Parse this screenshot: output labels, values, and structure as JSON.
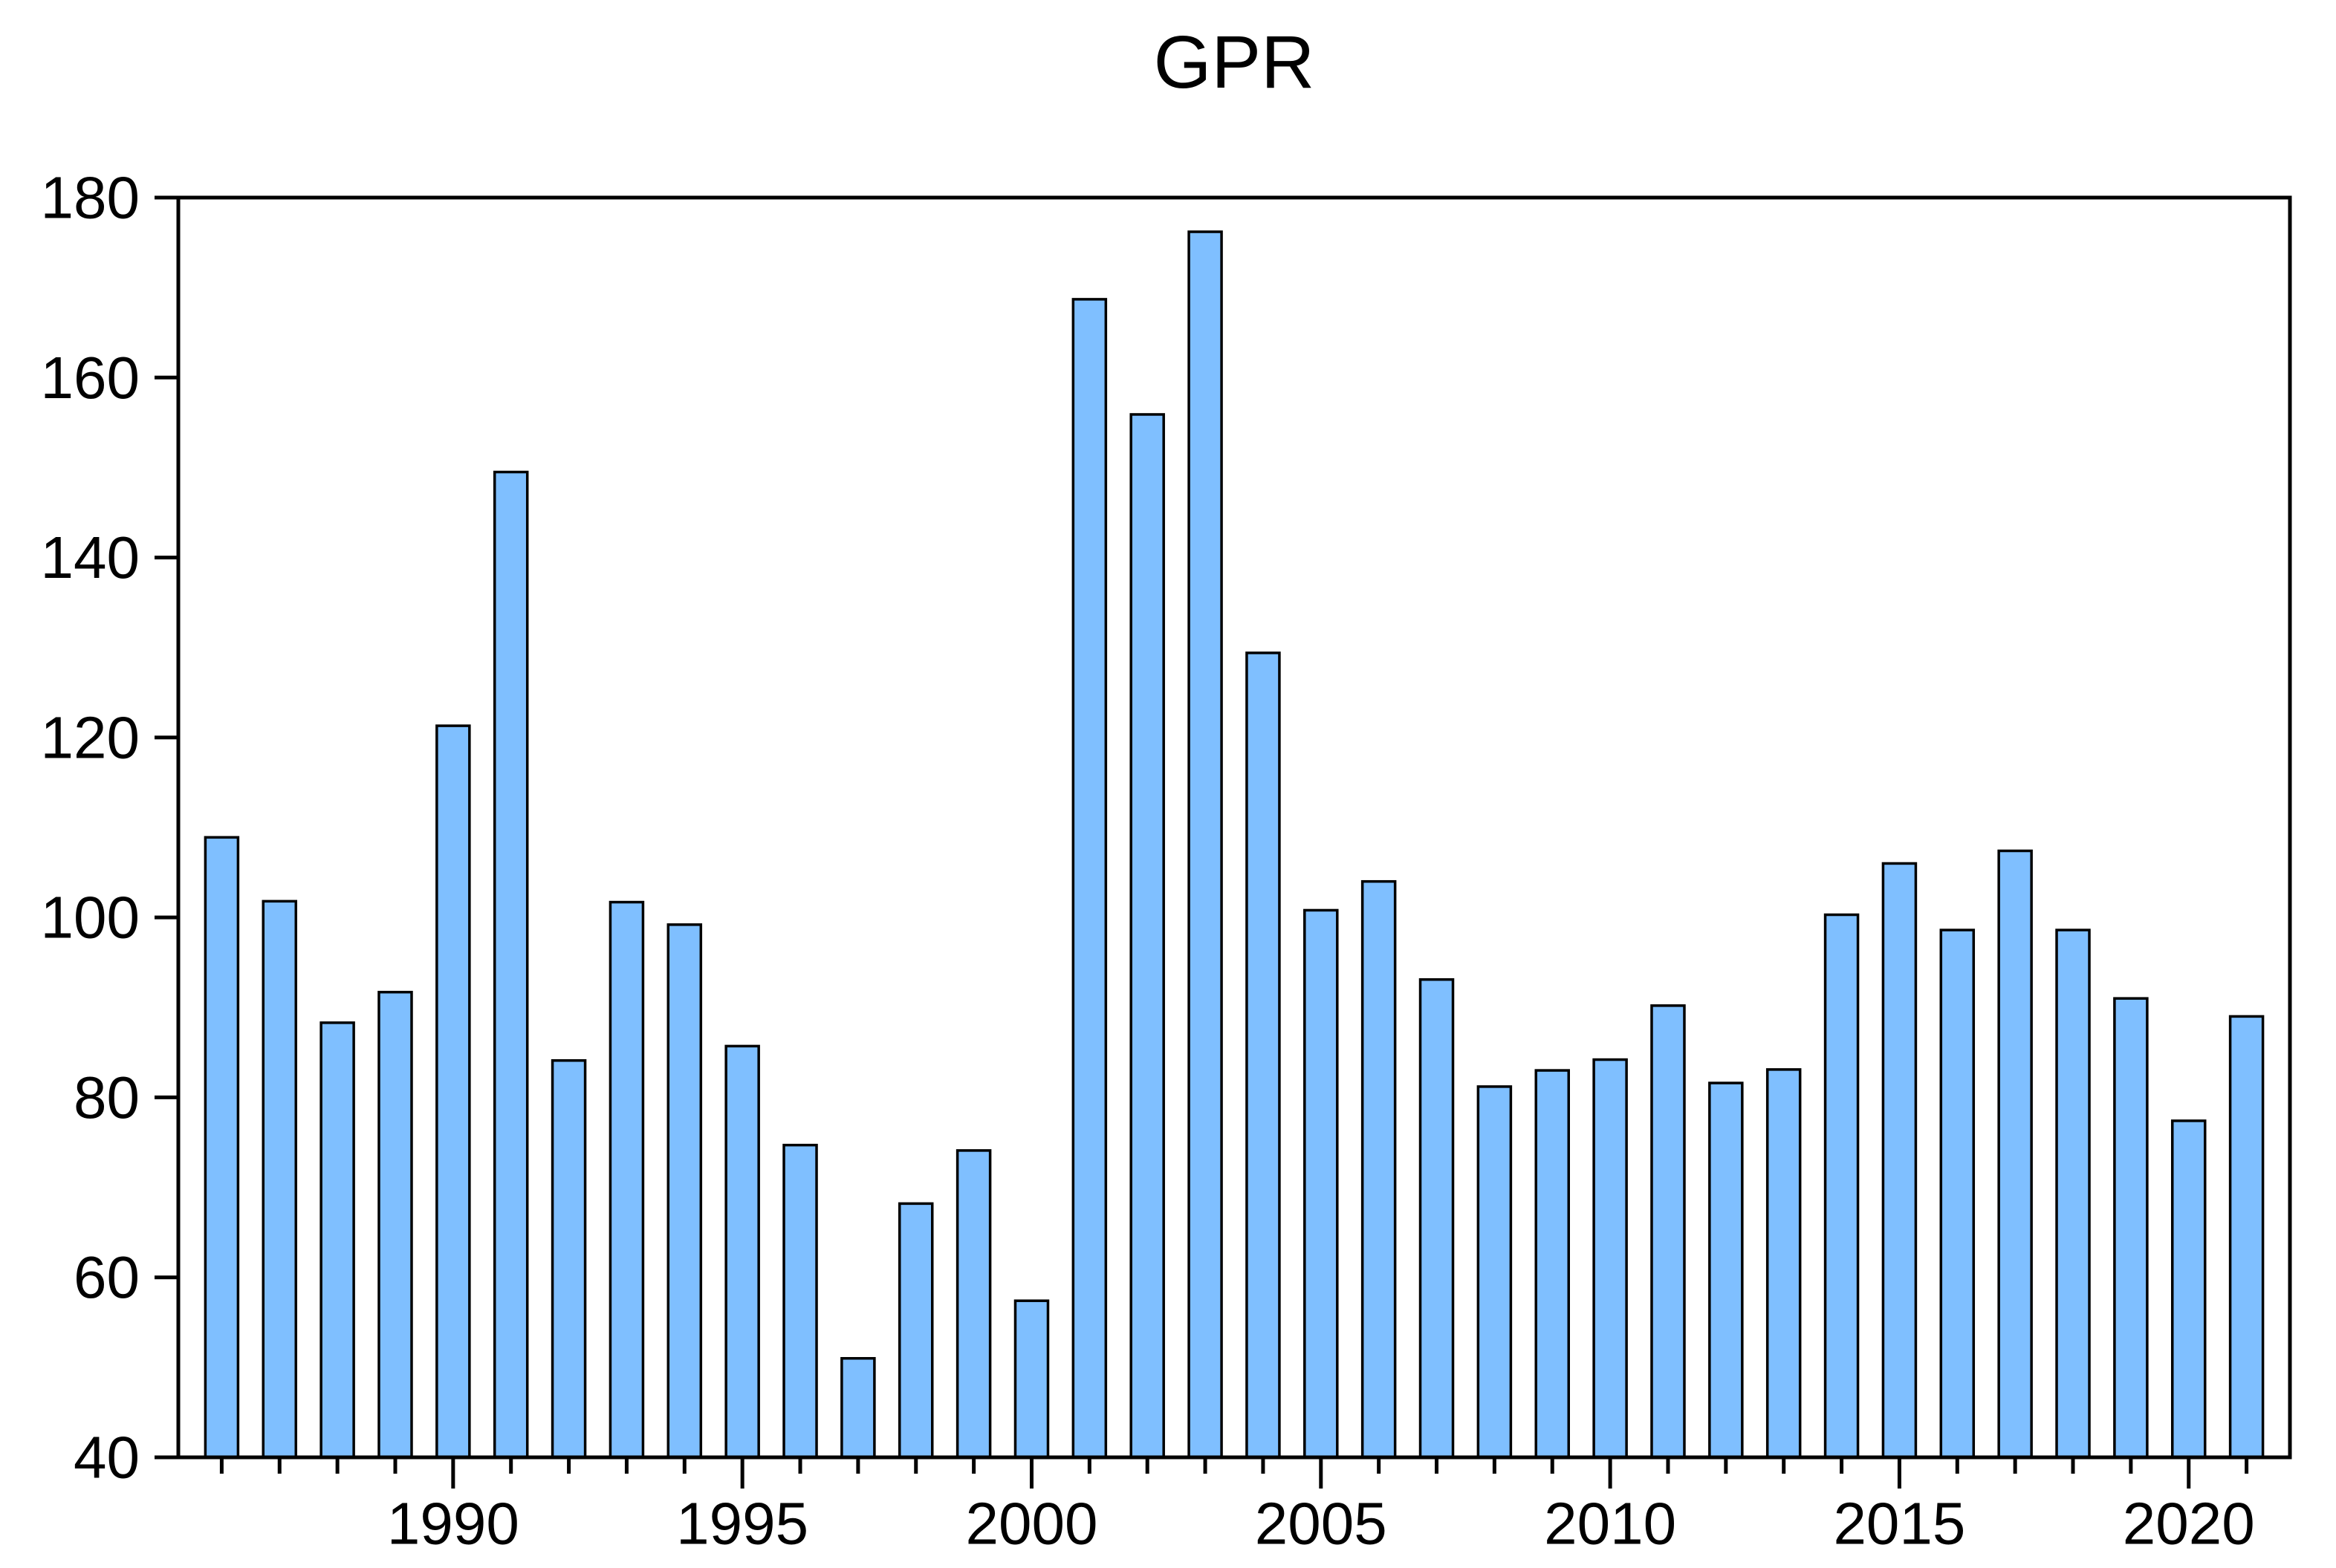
{
  "chart_data": {
    "type": "bar",
    "title": "GPR",
    "categories": [
      1986,
      1987,
      1988,
      1989,
      1990,
      1991,
      1992,
      1993,
      1994,
      1995,
      1996,
      1997,
      1998,
      1999,
      2000,
      2001,
      2002,
      2003,
      2004,
      2005,
      2006,
      2007,
      2008,
      2009,
      2010,
      2011,
      2012,
      2013,
      2014,
      2015,
      2016,
      2017,
      2018,
      2019,
      2020,
      2021
    ],
    "values": [
      108.9,
      101.8,
      88.3,
      91.7,
      121.3,
      149.5,
      84.1,
      101.7,
      99.2,
      85.7,
      74.7,
      51.0,
      68.2,
      74.1,
      57.4,
      168.7,
      155.9,
      176.2,
      129.4,
      100.8,
      104.0,
      93.1,
      81.2,
      83.0,
      84.2,
      90.2,
      81.6,
      83.1,
      100.3,
      106.0,
      98.6,
      107.4,
      98.6,
      91.0,
      77.4,
      89.0
    ],
    "xlabel": "",
    "ylabel": "",
    "ylim": [
      40,
      180
    ],
    "y_ticks": [
      180,
      160,
      140,
      120,
      100,
      80,
      60,
      40
    ],
    "x_major_ticks": [
      1990,
      1995,
      2000,
      2005,
      2010,
      2015,
      2020
    ],
    "x_major_labels": [
      "1990",
      "1995",
      "2000",
      "2005",
      "2010",
      "2015",
      "2020"
    ],
    "legend": "none",
    "grid": "off",
    "bar_fill": "#7FBFFF",
    "bar_border": "#000000",
    "axis_color": "#000000",
    "background": "#FFFFFF"
  }
}
